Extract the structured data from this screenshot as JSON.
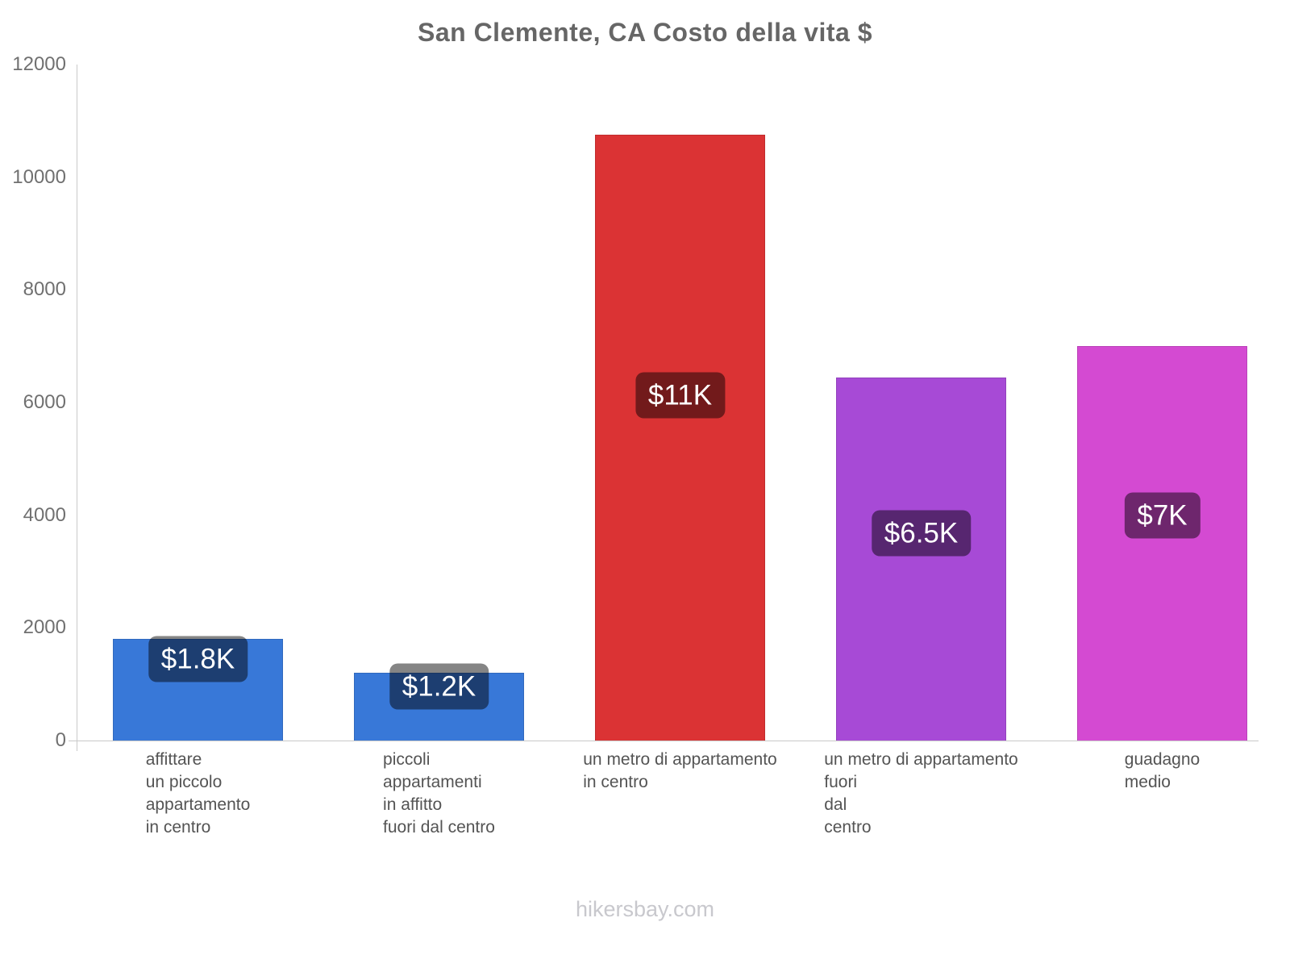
{
  "title": "San Clemente, CA Costo della vita $",
  "footer": "hikersbay.com",
  "chart_data": {
    "type": "bar",
    "title": "San Clemente, CA Costo della vita $",
    "xlabel": "",
    "ylabel": "",
    "ylim": [
      0,
      12000
    ],
    "yticks": [
      0,
      2000,
      4000,
      6000,
      8000,
      10000,
      12000
    ],
    "grid": false,
    "legend": false,
    "categories": [
      [
        "affittare",
        "un piccolo",
        "appartamento",
        "in centro"
      ],
      [
        "piccoli",
        "appartamenti",
        "in affitto",
        "fuori dal centro"
      ],
      [
        "un metro di appartamento",
        "in centro"
      ],
      [
        "un metro di appartamento",
        "fuori",
        "dal",
        "centro"
      ],
      [
        "guadagno",
        "medio"
      ]
    ],
    "values": [
      1800,
      1200,
      10750,
      6450,
      7000
    ],
    "value_labels": [
      "$1.8K",
      "$1.2K",
      "$11K",
      "$6.5K",
      "$7K"
    ],
    "bar_colors": [
      "#3878d8",
      "#3878d8",
      "#db3334",
      "#a74ad6",
      "#d44ad2"
    ],
    "label_box_color": "rgba(0,0,0,0.48)",
    "axis_color": "#c9c9c9",
    "text_color": "#707070"
  }
}
